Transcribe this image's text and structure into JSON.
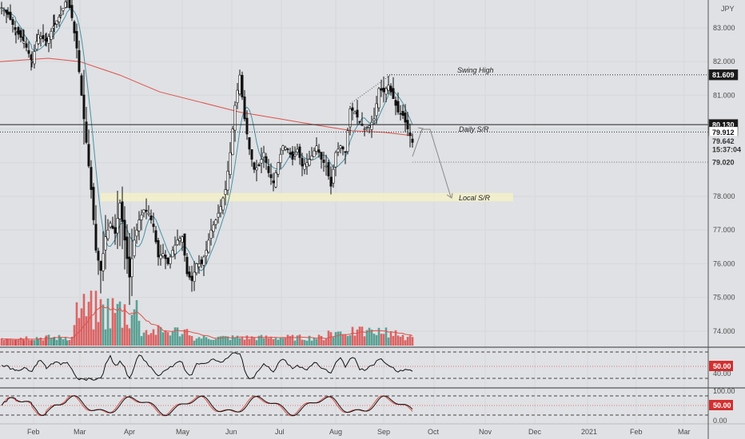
{
  "chart_data": {
    "type": "candlestick",
    "symbol_currency": "JPY",
    "x_axis_labels": [
      "Feb",
      "Mar",
      "Apr",
      "May",
      "Jun",
      "Jul",
      "Aug",
      "Sep",
      "Oct",
      "Nov",
      "Dec",
      "2021",
      "Feb",
      "Mar"
    ],
    "price_axis": {
      "ticks": [
        "83.000",
        "82.000",
        "81.000",
        "78.000",
        "77.000",
        "76.000",
        "75.000",
        "74.000"
      ],
      "range": [
        73.5,
        84.0
      ]
    },
    "price_tags": [
      {
        "label": "81.609",
        "value": 81.609,
        "bg": "#1a1a1a",
        "fg": "#ffffff"
      },
      {
        "label": "80.130",
        "value": 80.13,
        "bg": "#1a1a1a",
        "fg": "#ffffff"
      },
      {
        "label": "79.912",
        "value": 79.912,
        "bg": "#ffffff",
        "fg": "#111111"
      },
      {
        "label": "79.642",
        "value": 79.642,
        "bg": "#dfe1e4",
        "fg": "#333333"
      },
      {
        "label": "15:37:04",
        "value": 79.4,
        "bg": "#dfe1e4",
        "fg": "#333333"
      },
      {
        "label": "79.020",
        "value": 79.02,
        "bg": "#dfe1e4",
        "fg": "#333333"
      }
    ],
    "levels": [
      {
        "name": "Swing High",
        "value": 81.609,
        "style": "dotted"
      },
      {
        "name": "Daily S/R",
        "value": 80.13,
        "style": "solid"
      },
      {
        "name": "",
        "value": 79.912,
        "style": "dotted"
      }
    ],
    "zone": {
      "name": "Local S/R",
      "low": 77.85,
      "high": 78.1
    },
    "annotations": [
      "Swing High",
      "Daily S/R",
      "Local S/R"
    ],
    "rsi": {
      "ticks": [
        "50.00",
        "40.00"
      ],
      "highlight": "50.00"
    },
    "stoch": {
      "ticks": [
        "100.00",
        "50.00",
        "0.00"
      ],
      "highlight": "50.00"
    },
    "indicators": {
      "fast_ma_color": "#4a90a4",
      "slow_ma_color": "#e0504a",
      "up_color": "#2e8b7a",
      "down_color": "#d93b3b"
    }
  }
}
